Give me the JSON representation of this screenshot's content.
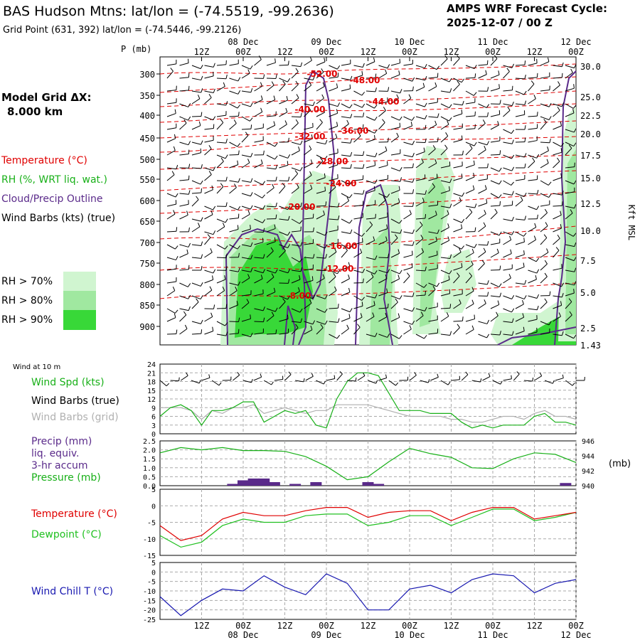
{
  "header": {
    "title": "BAS Hudson Mtns:  lat/lon = (-74.5519, -99.2636)",
    "subtitle": "Grid Point (631, 392) lat/lon = (-74.5446, -99.2126)",
    "cycle_line1": "AMPS WRF Forecast Cycle:",
    "cycle_line2": "2025-12-07 / 00  Z"
  },
  "legend": {
    "model_grid_1": "Model Grid ΔX:",
    "model_grid_2": "8.000 km",
    "temperature": "Temperature (°C)",
    "rh": "RH (%, WRT liq. wat.)",
    "cloud": "Cloud/Precip Outline",
    "wind": "Wind Barbs (kts) (true)",
    "rh70": "RH > 70%",
    "rh80": "RH > 80%",
    "rh90": "RH > 90%",
    "wind10m": "Wind at 10 m",
    "wind_spd": "Wind Spd (kts)",
    "wind_barbs_true": "Wind Barbs (true)",
    "wind_barbs_grid": "Wind Barbs (grid)",
    "precip1": "Precip (mm)",
    "precip2": "liq. equiv.",
    "precip3": "3-hr accum",
    "pressure": "Pressure (mb)",
    "pressure_unit": "(mb)",
    "temp2": "Temperature (°C)",
    "dewpoint": "Dewpoint (°C)",
    "windchill": "Wind Chill T (°C)"
  },
  "colors": {
    "temperature": "#e00000",
    "rh_green": "#18b018",
    "cloud": "#5a2a8a",
    "dewpoint": "#20c020",
    "windchill": "#1818b0",
    "rh70": "#d0f5d0",
    "rh80": "#a0e8a0",
    "rh90": "#38d838",
    "precip_bar": "#5a2a8a"
  },
  "chart_data": [
    {
      "type": "heatmap",
      "title": "",
      "time_axis_top": [
        "12Z",
        "00Z",
        "12Z",
        "00Z",
        "12Z",
        "00Z",
        "12Z",
        "00Z",
        "12Z",
        "00Z"
      ],
      "date_labels_top": [
        "08 Dec",
        "09 Dec",
        "10 Dec",
        "11 Dec",
        "12 Dec"
      ],
      "ylabel_left": "P (mb)",
      "ylabel_right": "Kft MSL",
      "pressure_ticks": [
        300,
        350,
        400,
        450,
        500,
        550,
        600,
        650,
        700,
        750,
        800,
        850,
        900
      ],
      "height_ticks": [
        "30.0",
        "25.0",
        "22.5",
        "20.0",
        "17.5",
        "15.0",
        "12.5",
        "10.0",
        "7.5",
        "5.0",
        "2.5",
        "1.43"
      ],
      "temperature_contour_labels": [
        "-52.00",
        "-48.00",
        "-44.00",
        "-40.00",
        "-36.00",
        "-32.00",
        "-28.00",
        "-24.00",
        "-20.00",
        "-16.00",
        "-12.00",
        "-8.00"
      ]
    },
    {
      "type": "line",
      "title": "Wind at 10 m",
      "ylim": [
        0,
        24
      ],
      "yticks": [
        "24",
        "21",
        "18",
        "15",
        "12",
        "9",
        "6",
        "3",
        "0"
      ],
      "x": [
        0,
        3,
        6,
        9,
        12,
        15,
        18,
        21,
        24,
        27,
        30,
        33,
        36,
        39,
        42,
        45,
        48,
        51,
        54,
        57,
        60,
        63,
        66,
        69,
        72,
        75,
        78,
        81,
        84,
        87,
        90,
        93,
        96,
        99,
        102,
        105,
        108,
        111,
        114,
        117,
        120
      ],
      "series": [
        {
          "name": "Wind Spd (kts)",
          "values": [
            6,
            9,
            10,
            8,
            3,
            8,
            8,
            9,
            11,
            11,
            4,
            6,
            8,
            7,
            8,
            3,
            2,
            12,
            18,
            21,
            21,
            20,
            14,
            8,
            8,
            8,
            7,
            7,
            7,
            4,
            2,
            3,
            2,
            3,
            3,
            3,
            6,
            7,
            4,
            4,
            3
          ]
        },
        {
          "name": "Wind Barbs (grid)",
          "values": [
            9,
            9,
            9,
            8,
            5,
            8,
            7,
            9,
            9,
            10,
            7,
            8,
            9,
            8,
            7,
            8,
            8,
            10,
            10,
            10,
            10,
            9,
            8,
            7,
            6,
            6,
            6,
            6,
            5,
            5,
            4,
            4,
            5,
            6,
            6,
            5,
            7,
            8,
            6,
            6,
            5
          ]
        }
      ]
    },
    {
      "type": "line",
      "title": "",
      "ylim": [
        0,
        2.5
      ],
      "yticks": [
        "2.5",
        "2.0",
        "1.5",
        "1.0",
        "0.5",
        "0.0"
      ],
      "y2ticks": [
        "946",
        "944",
        "942",
        "940"
      ],
      "x": [
        0,
        6,
        12,
        18,
        24,
        30,
        36,
        42,
        48,
        54,
        60,
        66,
        72,
        78,
        84,
        90,
        96,
        102,
        108,
        114,
        120
      ],
      "series": [
        {
          "name": "Pressure (mb)",
          "values": [
            944.4,
            945.1,
            944.8,
            945.1,
            944.7,
            944.7,
            944.6,
            943.9,
            942.6,
            940.8,
            941.2,
            943.2,
            945.0,
            944.3,
            943.8,
            942.4,
            942.3,
            943.6,
            944.4,
            944.2,
            943.1
          ]
        },
        {
          "name": "Precip (mm)",
          "x": [
            21,
            24,
            27,
            30,
            33,
            39,
            45,
            60,
            63,
            117
          ],
          "values": [
            0.1,
            0.3,
            0.4,
            0.4,
            0.2,
            0.1,
            0.2,
            0.2,
            0.1,
            0.15
          ]
        }
      ]
    },
    {
      "type": "line",
      "title": "",
      "ylim": [
        -15,
        5
      ],
      "yticks": [
        "5",
        "0",
        "-5",
        "-10",
        "-15"
      ],
      "x": [
        0,
        6,
        12,
        18,
        24,
        30,
        36,
        42,
        48,
        54,
        60,
        66,
        72,
        78,
        84,
        90,
        96,
        102,
        108,
        114,
        120
      ],
      "series": [
        {
          "name": "Temperature (°C)",
          "values": [
            -6,
            -10.5,
            -9,
            -4,
            -2,
            -3,
            -3,
            -1.5,
            -0.5,
            -0.5,
            -3.5,
            -2,
            -1.5,
            -1.5,
            -4.5,
            -2,
            -0.5,
            -0.5,
            -4,
            -3,
            -2
          ]
        },
        {
          "name": "Dewpoint (°C)",
          "values": [
            -9,
            -12.5,
            -11,
            -6,
            -4,
            -5,
            -5,
            -3,
            -2.5,
            -2.5,
            -6,
            -5,
            -3,
            -3,
            -6,
            -3.5,
            -1,
            -1,
            -4.5,
            -3.5,
            -2
          ]
        }
      ]
    },
    {
      "type": "line",
      "title": "",
      "ylim": [
        -25,
        5
      ],
      "yticks": [
        "5",
        "0",
        "-5",
        "-10",
        "-15",
        "-20",
        "-25"
      ],
      "time_axis_bottom": [
        "12Z",
        "00Z",
        "12Z",
        "00Z",
        "12Z",
        "00Z",
        "12Z",
        "00Z",
        "12Z",
        "00Z"
      ],
      "date_labels_bottom": [
        "08 Dec",
        "09 Dec",
        "10 Dec",
        "11 Dec",
        "12 Dec"
      ],
      "x": [
        0,
        6,
        12,
        18,
        24,
        30,
        36,
        42,
        48,
        54,
        60,
        66,
        72,
        78,
        84,
        90,
        96,
        102,
        108,
        114,
        120
      ],
      "series": [
        {
          "name": "Wind Chill T (°C)",
          "values": [
            -13,
            -23,
            -15,
            -9,
            -10,
            -2,
            -8,
            -12,
            -1,
            -6,
            -20,
            -20,
            -9,
            -7,
            -11,
            -4,
            -1,
            -2,
            -11,
            -6,
            -4
          ]
        }
      ]
    }
  ]
}
